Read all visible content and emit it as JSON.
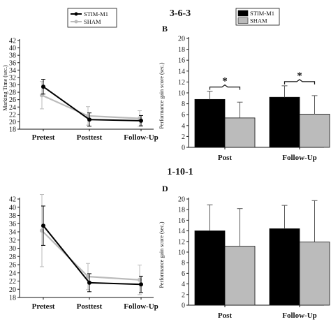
{
  "row_titles": [
    "3-6-3",
    "1-10-1"
  ],
  "chart_data": [
    {
      "panel": "A",
      "panel_label": "",
      "type": "line",
      "categories": [
        "Pretest",
        "Posttest",
        "Follow-Up"
      ],
      "ylabel": "Marking Time (sec.)",
      "ylim": [
        18,
        42
      ],
      "yticks": [
        18,
        20,
        22,
        24,
        26,
        28,
        30,
        32,
        34,
        36,
        38,
        40,
        42
      ],
      "legend": "top-left",
      "series": [
        {
          "name": "STIM-M1",
          "color": "#000000",
          "values": [
            29.5,
            20.6,
            20.3
          ],
          "err": [
            2.0,
            1.8,
            1.4
          ]
        },
        {
          "name": "SHAM",
          "color": "#bbbbbb",
          "values": [
            27.2,
            21.6,
            20.9
          ],
          "err": [
            3.7,
            2.5,
            2.1
          ]
        }
      ]
    },
    {
      "panel": "B",
      "panel_label": "B",
      "type": "bar",
      "categories": [
        "Post",
        "Follow-Up"
      ],
      "ylabel": "Performance gain score (sec.)",
      "ylim": [
        0,
        20
      ],
      "yticks": [
        0,
        2,
        4,
        6,
        8,
        10,
        12,
        14,
        16,
        18,
        20
      ],
      "legend": "top-left",
      "series": [
        {
          "name": "STIM-M1",
          "color": "#000000",
          "values": [
            8.8,
            9.2
          ],
          "err": [
            1.5,
            2.1
          ]
        },
        {
          "name": "SHAM",
          "color": "#bbbbbb",
          "values": [
            5.4,
            6.1
          ],
          "err": [
            2.9,
            3.4
          ]
        }
      ],
      "annotations": [
        "*",
        "*"
      ]
    },
    {
      "panel": "C",
      "panel_label": "",
      "type": "line",
      "categories": [
        "Pretest",
        "Posttest",
        "Follow-Up"
      ],
      "ylabel": "",
      "ylim": [
        18,
        42
      ],
      "yticks": [
        18,
        20,
        22,
        24,
        26,
        28,
        30,
        32,
        34,
        36,
        38,
        40,
        42
      ],
      "series": [
        {
          "name": "STIM-M1",
          "color": "#000000",
          "values": [
            35.5,
            21.6,
            21.2
          ],
          "err": [
            4.8,
            2.2,
            2.0
          ]
        },
        {
          "name": "SHAM",
          "color": "#bbbbbb",
          "values": [
            34.3,
            23.1,
            22.3
          ],
          "err": [
            8.8,
            3.2,
            3.6
          ]
        }
      ]
    },
    {
      "panel": "D",
      "panel_label": "D",
      "type": "bar",
      "categories": [
        "Post",
        "Follow-Up"
      ],
      "ylabel": "Performance gain score (sec.)",
      "ylim": [
        0,
        20
      ],
      "yticks": [
        0,
        2,
        4,
        6,
        8,
        10,
        12,
        14,
        16,
        18,
        20
      ],
      "series": [
        {
          "name": "STIM-M1",
          "color": "#000000",
          "values": [
            14.0,
            14.4
          ],
          "err": [
            4.9,
            4.4
          ]
        },
        {
          "name": "SHAM",
          "color": "#bbbbbb",
          "values": [
            11.1,
            11.9
          ],
          "err": [
            7.1,
            7.8
          ]
        }
      ]
    }
  ]
}
